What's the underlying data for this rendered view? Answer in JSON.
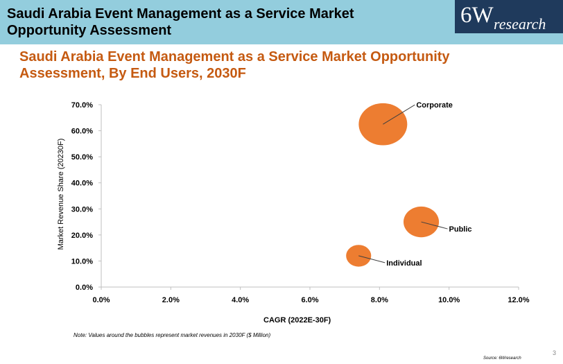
{
  "header": {
    "title": "Saudi Arabia Event Management as a Service Market Opportunity Assessment",
    "logo_main": "6W",
    "logo_sub": "research"
  },
  "subtitle": "Saudi Arabia Event Management as a Service Market Opportunity Assessment, By End Users, 2030F",
  "note": "Note: Values around the bubbles represent market revenues in 2030F ($ Million)",
  "source": "Source: 6Wresearch",
  "page_number": "3",
  "colors": {
    "bubble": "#ed7d31",
    "header_bg": "#93cddd",
    "subtitle": "#c55a11",
    "logo_bg": "#1f3a5c"
  },
  "chart_data": {
    "type": "scatter",
    "title": "",
    "xlabel": "CAGR (2022E-30F)",
    "ylabel": "Market Revenue Share (20230F)",
    "xlim": [
      0,
      12
    ],
    "ylim": [
      0,
      70
    ],
    "x_ticks": [
      "0.0%",
      "2.0%",
      "4.0%",
      "6.0%",
      "8.0%",
      "10.0%",
      "12.0%"
    ],
    "y_ticks": [
      "0.0%",
      "10.0%",
      "20.0%",
      "30.0%",
      "40.0%",
      "50.0%",
      "60.0%",
      "70.0%"
    ],
    "series": [
      {
        "name": "Corporate",
        "x": 8.1,
        "y": 62.5,
        "size": 3
      },
      {
        "name": "Public",
        "x": 9.2,
        "y": 25.0,
        "size": 1.6
      },
      {
        "name": "Individual",
        "x": 7.4,
        "y": 12.0,
        "size": 0.8
      }
    ]
  }
}
